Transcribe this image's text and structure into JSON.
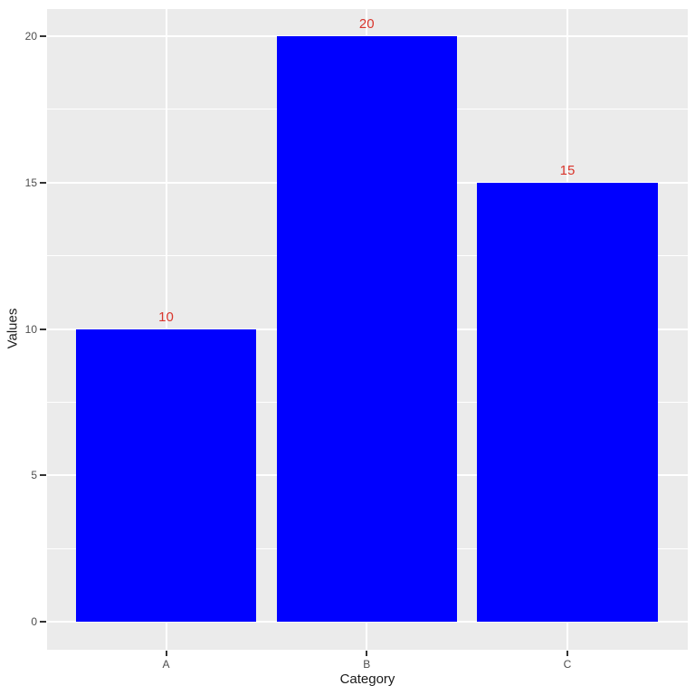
{
  "chart_data": {
    "type": "bar",
    "title": "",
    "xlabel": "Category",
    "ylabel": "Values",
    "categories": [
      "A",
      "B",
      "C"
    ],
    "values": [
      10,
      20,
      15
    ],
    "bar_labels": [
      "10",
      "20",
      "15"
    ],
    "ylim": [
      0,
      20
    ],
    "yticks": [
      0,
      5,
      10,
      15,
      20
    ],
    "yticks_minor": [
      2.5,
      7.5,
      12.5,
      17.5
    ],
    "grid": "on",
    "legend": "none",
    "colors": {
      "bar": "#0000ff",
      "value_label": "#d9352c",
      "panel_background": "#ebebeb",
      "gridline": "#ffffff",
      "tick_mark": "#333333",
      "tick_label": "#4d4d4d",
      "axis_title": "#1a1a1a",
      "figure_background": "#ffffff"
    }
  }
}
